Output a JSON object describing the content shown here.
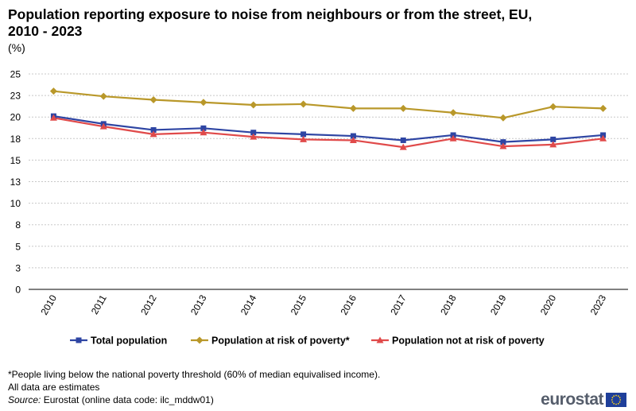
{
  "title": "Population reporting exposure to noise from neighbours or from the street, EU, 2010 - 2023",
  "unit": "(%)",
  "chart_data": {
    "type": "line",
    "title": "Population reporting exposure to noise from neighbours or from the street, EU, 2010 - 2023",
    "ylabel": "(%)",
    "xlabel": "",
    "ylim": [
      0,
      25
    ],
    "grid": true,
    "legend_position": "bottom",
    "y_ticks": [
      "0",
      "3",
      "5",
      "8",
      "10",
      "13",
      "15",
      "18",
      "20",
      "23",
      "25"
    ],
    "categories": [
      "2010",
      "2011",
      "2012",
      "2013",
      "2014",
      "2015",
      "2016",
      "2017",
      "2018",
      "2019",
      "2020",
      "2023"
    ],
    "series": [
      {
        "name": "Total population",
        "color": "#2e45a3",
        "marker": "square",
        "values": [
          20.1,
          19.2,
          18.5,
          18.7,
          18.2,
          18.0,
          17.8,
          17.3,
          17.9,
          17.1,
          17.4,
          17.9
        ]
      },
      {
        "name": "Population at risk of poverty*",
        "color": "#b9982a",
        "marker": "diamond",
        "values": [
          23.0,
          22.4,
          22.0,
          21.7,
          21.4,
          21.5,
          21.0,
          21.0,
          20.5,
          19.9,
          21.2,
          21.0
        ]
      },
      {
        "name": "Population not at risk of poverty",
        "color": "#e04a4a",
        "marker": "triangle",
        "values": [
          19.9,
          18.9,
          18.0,
          18.2,
          17.7,
          17.4,
          17.3,
          16.5,
          17.5,
          16.6,
          16.8,
          17.5
        ]
      }
    ]
  },
  "footnote": "*People living below the national poverty threshold (60% of median equivalised income).",
  "estimates_note": "All data are estimates",
  "source_label": "Source:",
  "source_text": " Eurostat (online data code: ilc_mddw01)",
  "logo_text": "eurostat"
}
